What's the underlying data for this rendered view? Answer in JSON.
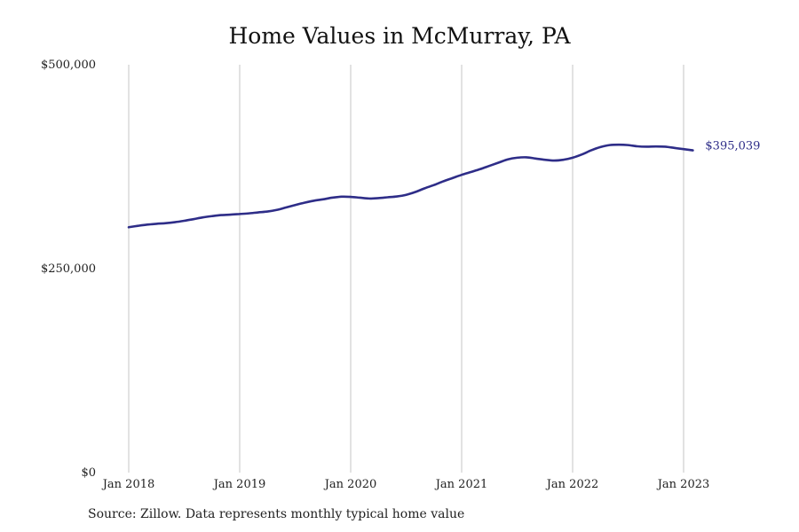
{
  "chart_data": {
    "type": "line",
    "title": "Home Values in McMurray, PA",
    "source": "Source: Zillow. Data represents monthly typical home value",
    "ylim": [
      0,
      500000
    ],
    "y_ticks": [
      {
        "value": 0,
        "label": "$0"
      },
      {
        "value": 250000,
        "label": "$250,000"
      },
      {
        "value": 500000,
        "label": "$500,000"
      }
    ],
    "x_ticks": [
      {
        "value": "2018-01",
        "label": "Jan 2018"
      },
      {
        "value": "2019-01",
        "label": "Jan 2019"
      },
      {
        "value": "2020-01",
        "label": "Jan 2020"
      },
      {
        "value": "2021-01",
        "label": "Jan 2021"
      },
      {
        "value": "2022-01",
        "label": "Jan 2022"
      },
      {
        "value": "2023-01",
        "label": "Jan 2023"
      }
    ],
    "grid": {
      "vertical": true,
      "horizontal": false
    },
    "series_color": "#2e2d88",
    "grid_color": "#c4c4c4",
    "end_label": "$395,039",
    "x": [
      "2018-01",
      "2018-02",
      "2018-03",
      "2018-04",
      "2018-05",
      "2018-06",
      "2018-07",
      "2018-08",
      "2018-09",
      "2018-10",
      "2018-11",
      "2018-12",
      "2019-01",
      "2019-02",
      "2019-03",
      "2019-04",
      "2019-05",
      "2019-06",
      "2019-07",
      "2019-08",
      "2019-09",
      "2019-10",
      "2019-11",
      "2019-12",
      "2020-01",
      "2020-02",
      "2020-03",
      "2020-04",
      "2020-05",
      "2020-06",
      "2020-07",
      "2020-08",
      "2020-09",
      "2020-10",
      "2020-11",
      "2020-12",
      "2021-01",
      "2021-02",
      "2021-03",
      "2021-04",
      "2021-05",
      "2021-06",
      "2021-07",
      "2021-08",
      "2021-09",
      "2021-10",
      "2021-11",
      "2021-12",
      "2022-01",
      "2022-02",
      "2022-03",
      "2022-04",
      "2022-05",
      "2022-06",
      "2022-07",
      "2022-08",
      "2022-09",
      "2022-10",
      "2022-11",
      "2022-12",
      "2023-01",
      "2023-02"
    ],
    "series": [
      {
        "values": [
          300800,
          302500,
          304000,
          305000,
          305800,
          307000,
          308700,
          310700,
          312800,
          314400,
          315700,
          316200,
          317000,
          317800,
          319000,
          320000,
          322000,
          325000,
          328000,
          330800,
          333200,
          335000,
          337000,
          338200,
          338000,
          337000,
          336000,
          336500,
          337500,
          338500,
          340500,
          344000,
          348500,
          352500,
          357000,
          361000,
          365000,
          368500,
          372000,
          376000,
          380000,
          384000,
          386000,
          386500,
          385000,
          383500,
          382500,
          383500,
          386000,
          390000,
          395000,
          399000,
          401500,
          402000,
          401500,
          400000,
          399500,
          399800,
          399500,
          398000,
          396500,
          395039
        ]
      }
    ]
  }
}
